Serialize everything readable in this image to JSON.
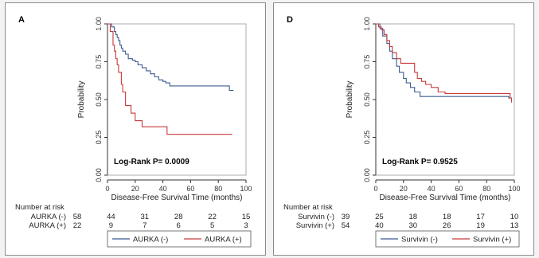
{
  "chart_data": [
    {
      "type": "line",
      "panel_letter": "A",
      "xlabel": "Disease-Free Survival Time (months)",
      "ylabel": "Probability",
      "xlim": [
        0,
        100
      ],
      "ylim": [
        0,
        1
      ],
      "x_ticks": [
        "0",
        "20",
        "40",
        "60",
        "80",
        "100"
      ],
      "y_ticks": [
        "0.00",
        "0.25",
        "0.50",
        "0.75",
        "1.00"
      ],
      "annotation": "Log-Rank P= 0.0009",
      "risk_title": "Number at risk",
      "risk_times": [
        0,
        20,
        40,
        60,
        80,
        100
      ],
      "series": [
        {
          "name": "AURKA (-)",
          "color": "#3b5b92",
          "risk_counts": [
            "58",
            "44",
            "31",
            "28",
            "22",
            "15"
          ],
          "x": [
            0,
            3,
            5,
            6,
            7,
            8,
            9,
            10,
            11,
            13,
            15,
            18,
            20,
            22,
            25,
            28,
            31,
            34,
            37,
            40,
            42,
            45,
            50,
            60,
            70,
            80,
            85,
            88,
            91
          ],
          "y": [
            1.0,
            0.98,
            0.95,
            0.93,
            0.91,
            0.89,
            0.86,
            0.84,
            0.82,
            0.8,
            0.77,
            0.76,
            0.75,
            0.73,
            0.71,
            0.69,
            0.67,
            0.65,
            0.63,
            0.62,
            0.61,
            0.59,
            0.59,
            0.59,
            0.59,
            0.59,
            0.59,
            0.56,
            0.56
          ]
        },
        {
          "name": "AURKA (+)",
          "color": "#c83a3a",
          "risk_counts": [
            "22",
            "9",
            "7",
            "6",
            "5",
            "3"
          ],
          "x": [
            0,
            2,
            4,
            5,
            6,
            7,
            8,
            10,
            11,
            13,
            17,
            20,
            25,
            30,
            43,
            60,
            90
          ],
          "y": [
            1.0,
            0.95,
            0.86,
            0.82,
            0.77,
            0.73,
            0.68,
            0.6,
            0.55,
            0.46,
            0.41,
            0.36,
            0.32,
            0.32,
            0.27,
            0.27,
            0.27
          ]
        }
      ]
    },
    {
      "type": "line",
      "panel_letter": "D",
      "xlabel": "Disease-Free Survival Time (months)",
      "ylabel": "Probability",
      "xlim": [
        0,
        100
      ],
      "ylim": [
        0,
        1
      ],
      "x_ticks": [
        "0",
        "20",
        "40",
        "60",
        "80",
        "100"
      ],
      "y_ticks": [
        "0.00",
        "0.25",
        "0.50",
        "0.75",
        "1.00"
      ],
      "annotation": "Log-Rank P= 0.9525",
      "risk_title": "Number at risk",
      "risk_times": [
        0,
        20,
        40,
        60,
        80,
        100
      ],
      "series": [
        {
          "name": "Survivin (-)",
          "color": "#3b5b92",
          "risk_counts": [
            "39",
            "25",
            "18",
            "18",
            "17",
            "10"
          ],
          "x": [
            0,
            3,
            5,
            8,
            10,
            12,
            15,
            17,
            20,
            22,
            25,
            28,
            32,
            40,
            60,
            80,
            96,
            97
          ],
          "y": [
            1.0,
            0.97,
            0.92,
            0.87,
            0.82,
            0.77,
            0.72,
            0.68,
            0.64,
            0.61,
            0.58,
            0.55,
            0.52,
            0.52,
            0.52,
            0.52,
            0.51,
            0.51
          ]
        },
        {
          "name": "Survivin (+)",
          "color": "#c83a3a",
          "risk_counts": [
            "54",
            "40",
            "30",
            "26",
            "19",
            "13"
          ],
          "x": [
            0,
            2,
            4,
            6,
            8,
            10,
            12,
            15,
            18,
            25,
            28,
            30,
            33,
            36,
            40,
            45,
            50,
            60,
            80,
            97,
            98
          ],
          "y": [
            1.0,
            0.98,
            0.96,
            0.93,
            0.89,
            0.85,
            0.81,
            0.77,
            0.74,
            0.74,
            0.68,
            0.64,
            0.62,
            0.6,
            0.58,
            0.55,
            0.54,
            0.54,
            0.54,
            0.51,
            0.48
          ]
        }
      ]
    }
  ]
}
